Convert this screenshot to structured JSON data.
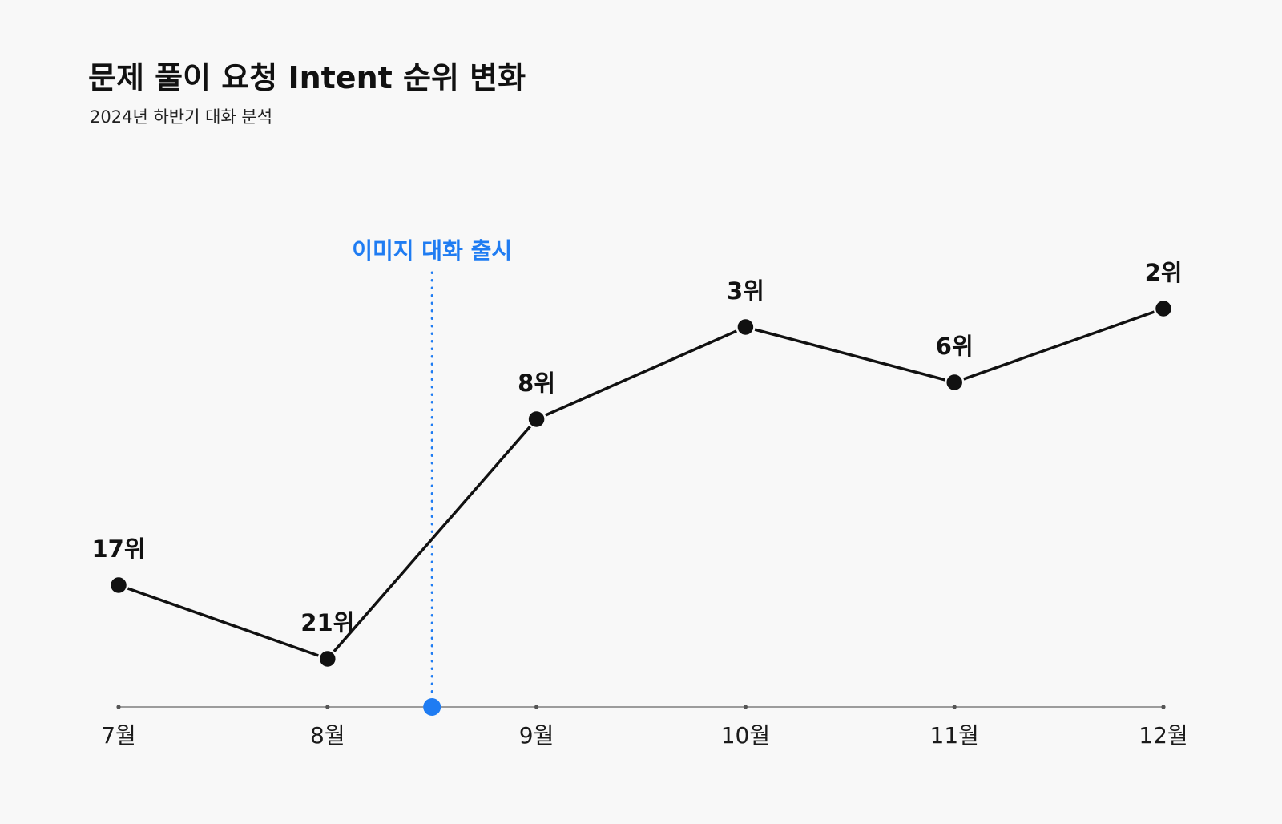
{
  "header": {
    "title": "문제 풀이 요청 Intent 순위 변화",
    "subtitle": "2024년 하반기 대화 분석"
  },
  "chart_data": {
    "type": "line",
    "title": "문제 풀이 요청 Intent 순위 변화",
    "subtitle": "2024년 하반기 대화 분석",
    "categories": [
      "7월",
      "8월",
      "9월",
      "10월",
      "11월",
      "12월"
    ],
    "series": [
      {
        "values": [
          17,
          21,
          8,
          3,
          6,
          2
        ],
        "labels": [
          "17위",
          "21위",
          "8위",
          "3위",
          "6위",
          "2위"
        ]
      }
    ],
    "y_inverted": true,
    "annotation": {
      "label": "이미지 대화 출시",
      "position_between": [
        "8월",
        "9월"
      ]
    },
    "grid": false,
    "colors": {
      "line": "#111111",
      "point": "#111111",
      "annotation": "#1f7cf2",
      "axis": "#555555",
      "background": "#f8f8f8"
    }
  }
}
